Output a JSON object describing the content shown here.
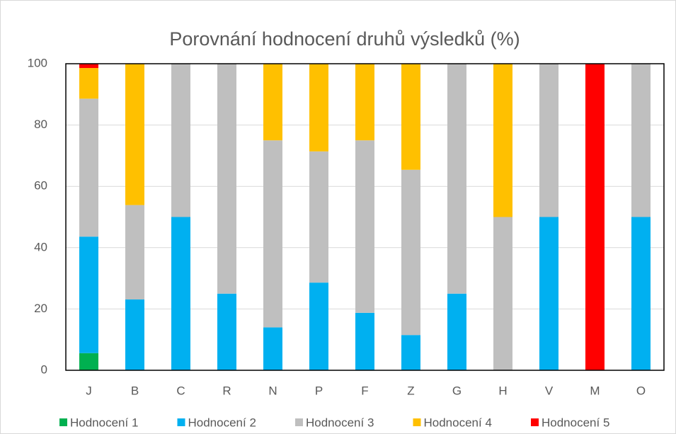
{
  "chart_data": {
    "type": "stacked_bar",
    "title": "Porovnání hodnocení druhů výsledků (%)",
    "categories": [
      "J",
      "B",
      "C",
      "R",
      "N",
      "P",
      "F",
      "Z",
      "G",
      "H",
      "V",
      "M",
      "O"
    ],
    "series": [
      {
        "name": "Hodnocení 1",
        "color": "#00b050",
        "values": [
          5.6,
          0,
          0,
          0,
          0,
          0,
          0,
          0,
          0,
          0,
          0,
          0,
          0
        ]
      },
      {
        "name": "Hodnocení 2",
        "color": "#00b0f0",
        "values": [
          38,
          23.1,
          50,
          25,
          14,
          28.6,
          18.75,
          11.5,
          25,
          0,
          50,
          0,
          50
        ]
      },
      {
        "name": "Hodnocení 3",
        "color": "#bfbfbf",
        "values": [
          45,
          30.8,
          50,
          75,
          61,
          42.8,
          56.25,
          53.9,
          75,
          50,
          50,
          0,
          50
        ]
      },
      {
        "name": "Hodnocení 4",
        "color": "#ffc000",
        "values": [
          10,
          46.1,
          0,
          0,
          25,
          28.6,
          25,
          34.6,
          0,
          50,
          0,
          0,
          0
        ]
      },
      {
        "name": "Hodnocení 5",
        "color": "#ff0000",
        "values": [
          1.4,
          0,
          0,
          0,
          0,
          0,
          0,
          0,
          0,
          0,
          0,
          100,
          0
        ]
      }
    ],
    "ylim": [
      0,
      100
    ],
    "yticks": [
      0,
      20,
      40,
      60,
      80,
      100
    ],
    "grid": true,
    "legend": "bottom"
  }
}
